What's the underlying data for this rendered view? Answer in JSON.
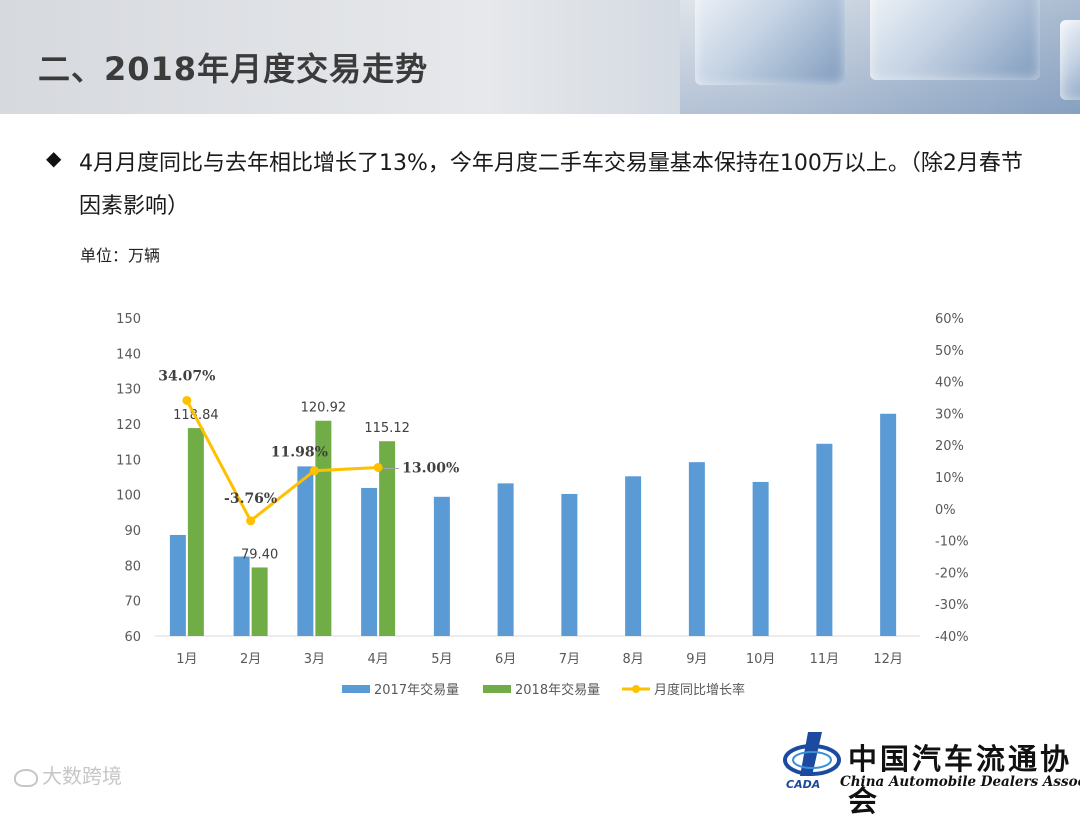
{
  "page": {
    "title": "二、2018年月度交易走势",
    "bullet_text": "4月月度同比与去年相比增长了13%，今年月度二手车交易量基本保持在100万以上。（除2月春节因素影响）",
    "unit_label": "单位：万辆"
  },
  "chart_data": {
    "type": "bar",
    "categories": [
      "1月",
      "2月",
      "3月",
      "4月",
      "5月",
      "6月",
      "7月",
      "8月",
      "9月",
      "10月",
      "11月",
      "12月"
    ],
    "series": [
      {
        "name": "2017年交易量",
        "type": "bar",
        "axis": "left",
        "color": "#5b9bd5",
        "values": [
          88.6,
          82.5,
          108.0,
          101.9,
          99.4,
          103.2,
          100.2,
          105.2,
          109.2,
          103.6,
          114.4,
          122.9
        ]
      },
      {
        "name": "2018年交易量",
        "type": "bar",
        "axis": "left",
        "color": "#70ad47",
        "values": [
          118.84,
          79.4,
          120.92,
          115.12,
          null,
          null,
          null,
          null,
          null,
          null,
          null,
          null
        ],
        "labels": [
          "118.84",
          "79.40",
          "120.92",
          "115.12"
        ]
      },
      {
        "name": "月度同比增长率",
        "type": "line",
        "axis": "right",
        "color": "#ffc000",
        "values": [
          34.07,
          -3.76,
          11.98,
          13.0,
          null,
          null,
          null,
          null,
          null,
          null,
          null,
          null
        ],
        "labels": [
          "34.07%",
          "-3.76%",
          "11.98%",
          "13.00%"
        ]
      }
    ],
    "y_left": {
      "min": 60,
      "max": 150,
      "step": 10,
      "ticks": [
        "60",
        "70",
        "80",
        "90",
        "100",
        "110",
        "120",
        "130",
        "140",
        "150"
      ]
    },
    "y_right": {
      "min": -40,
      "max": 60,
      "step": 10,
      "ticks": [
        "-40%",
        "-30%",
        "-20%",
        "-10%",
        "0%",
        "10%",
        "20%",
        "30%",
        "40%",
        "50%",
        "60%"
      ]
    },
    "legend_position": "bottom",
    "grid": false
  },
  "watermark": {
    "text": "大数跨境"
  },
  "logo": {
    "name_cn": "中国汽车流通协会",
    "name_en": "China Automobile Dealers Association",
    "abbr": "CADA"
  }
}
